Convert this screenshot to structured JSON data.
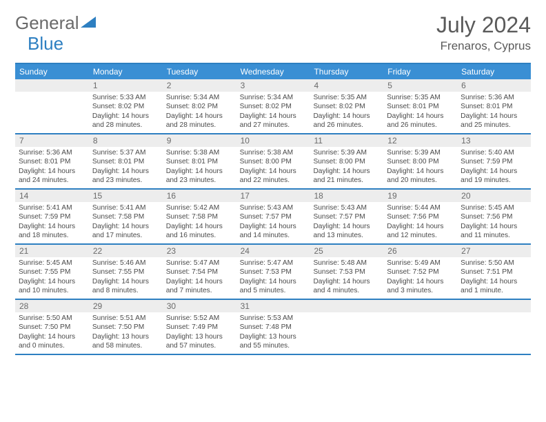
{
  "logo": {
    "text1": "General",
    "text2": "Blue"
  },
  "title": "July 2024",
  "location": "Frenaros, Cyprus",
  "colors": {
    "header_bg": "#3a8fd4",
    "border": "#2d7fc1",
    "daynum_bg": "#ededed",
    "text": "#4a4a4a"
  },
  "day_headers": [
    "Sunday",
    "Monday",
    "Tuesday",
    "Wednesday",
    "Thursday",
    "Friday",
    "Saturday"
  ],
  "weeks": [
    [
      null,
      {
        "n": "1",
        "sr": "5:33 AM",
        "ss": "8:02 PM",
        "dl": "14 hours and 28 minutes."
      },
      {
        "n": "2",
        "sr": "5:34 AM",
        "ss": "8:02 PM",
        "dl": "14 hours and 28 minutes."
      },
      {
        "n": "3",
        "sr": "5:34 AM",
        "ss": "8:02 PM",
        "dl": "14 hours and 27 minutes."
      },
      {
        "n": "4",
        "sr": "5:35 AM",
        "ss": "8:02 PM",
        "dl": "14 hours and 26 minutes."
      },
      {
        "n": "5",
        "sr": "5:35 AM",
        "ss": "8:01 PM",
        "dl": "14 hours and 26 minutes."
      },
      {
        "n": "6",
        "sr": "5:36 AM",
        "ss": "8:01 PM",
        "dl": "14 hours and 25 minutes."
      }
    ],
    [
      {
        "n": "7",
        "sr": "5:36 AM",
        "ss": "8:01 PM",
        "dl": "14 hours and 24 minutes."
      },
      {
        "n": "8",
        "sr": "5:37 AM",
        "ss": "8:01 PM",
        "dl": "14 hours and 23 minutes."
      },
      {
        "n": "9",
        "sr": "5:38 AM",
        "ss": "8:01 PM",
        "dl": "14 hours and 23 minutes."
      },
      {
        "n": "10",
        "sr": "5:38 AM",
        "ss": "8:00 PM",
        "dl": "14 hours and 22 minutes."
      },
      {
        "n": "11",
        "sr": "5:39 AM",
        "ss": "8:00 PM",
        "dl": "14 hours and 21 minutes."
      },
      {
        "n": "12",
        "sr": "5:39 AM",
        "ss": "8:00 PM",
        "dl": "14 hours and 20 minutes."
      },
      {
        "n": "13",
        "sr": "5:40 AM",
        "ss": "7:59 PM",
        "dl": "14 hours and 19 minutes."
      }
    ],
    [
      {
        "n": "14",
        "sr": "5:41 AM",
        "ss": "7:59 PM",
        "dl": "14 hours and 18 minutes."
      },
      {
        "n": "15",
        "sr": "5:41 AM",
        "ss": "7:58 PM",
        "dl": "14 hours and 17 minutes."
      },
      {
        "n": "16",
        "sr": "5:42 AM",
        "ss": "7:58 PM",
        "dl": "14 hours and 16 minutes."
      },
      {
        "n": "17",
        "sr": "5:43 AM",
        "ss": "7:57 PM",
        "dl": "14 hours and 14 minutes."
      },
      {
        "n": "18",
        "sr": "5:43 AM",
        "ss": "7:57 PM",
        "dl": "14 hours and 13 minutes."
      },
      {
        "n": "19",
        "sr": "5:44 AM",
        "ss": "7:56 PM",
        "dl": "14 hours and 12 minutes."
      },
      {
        "n": "20",
        "sr": "5:45 AM",
        "ss": "7:56 PM",
        "dl": "14 hours and 11 minutes."
      }
    ],
    [
      {
        "n": "21",
        "sr": "5:45 AM",
        "ss": "7:55 PM",
        "dl": "14 hours and 10 minutes."
      },
      {
        "n": "22",
        "sr": "5:46 AM",
        "ss": "7:55 PM",
        "dl": "14 hours and 8 minutes."
      },
      {
        "n": "23",
        "sr": "5:47 AM",
        "ss": "7:54 PM",
        "dl": "14 hours and 7 minutes."
      },
      {
        "n": "24",
        "sr": "5:47 AM",
        "ss": "7:53 PM",
        "dl": "14 hours and 5 minutes."
      },
      {
        "n": "25",
        "sr": "5:48 AM",
        "ss": "7:53 PM",
        "dl": "14 hours and 4 minutes."
      },
      {
        "n": "26",
        "sr": "5:49 AM",
        "ss": "7:52 PM",
        "dl": "14 hours and 3 minutes."
      },
      {
        "n": "27",
        "sr": "5:50 AM",
        "ss": "7:51 PM",
        "dl": "14 hours and 1 minute."
      }
    ],
    [
      {
        "n": "28",
        "sr": "5:50 AM",
        "ss": "7:50 PM",
        "dl": "14 hours and 0 minutes."
      },
      {
        "n": "29",
        "sr": "5:51 AM",
        "ss": "7:50 PM",
        "dl": "13 hours and 58 minutes."
      },
      {
        "n": "30",
        "sr": "5:52 AM",
        "ss": "7:49 PM",
        "dl": "13 hours and 57 minutes."
      },
      {
        "n": "31",
        "sr": "5:53 AM",
        "ss": "7:48 PM",
        "dl": "13 hours and 55 minutes."
      },
      null,
      null,
      null
    ]
  ]
}
